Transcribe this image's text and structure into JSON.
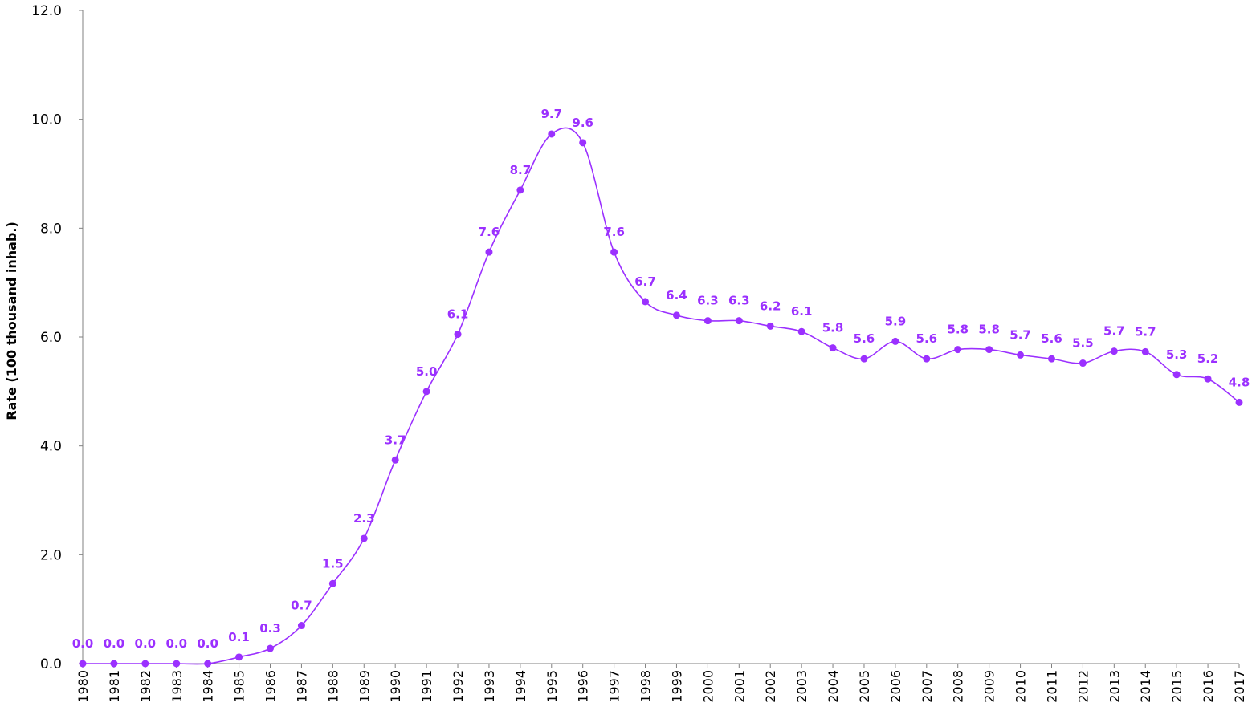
{
  "chart_data": {
    "type": "line",
    "title": "",
    "xlabel": "",
    "ylabel": "Rate (100 thousand inhab.)",
    "ylim": [
      0,
      12
    ],
    "yticks": [
      "0.0",
      "2.0",
      "4.0",
      "6.0",
      "8.0",
      "10.0",
      "12.0"
    ],
    "grid": false,
    "smooth": true,
    "colors": {
      "series": "#9b30ff",
      "axis": "#808080"
    },
    "categories": [
      "1980",
      "1981",
      "1982",
      "1983",
      "1984",
      "1985",
      "1986",
      "1987",
      "1988",
      "1989",
      "1990",
      "1991",
      "1992",
      "1993",
      "1994",
      "1995",
      "1996",
      "1997",
      "1998",
      "1999",
      "2000",
      "2001",
      "2002",
      "2003",
      "2004",
      "2005",
      "2006",
      "2007",
      "2008",
      "2009",
      "2010",
      "2011",
      "2012",
      "2013",
      "2014",
      "2015",
      "2016",
      "2017"
    ],
    "values": [
      0.0,
      0.0,
      0.0,
      0.0,
      0.0,
      0.12,
      0.28,
      0.7,
      1.47,
      2.3,
      3.74,
      5.0,
      6.05,
      7.56,
      8.7,
      9.73,
      9.57,
      7.56,
      6.65,
      6.4,
      6.3,
      6.3,
      6.2,
      6.1,
      5.8,
      5.6,
      5.92,
      5.6,
      5.77,
      5.77,
      5.67,
      5.6,
      5.52,
      5.74,
      5.73,
      5.31,
      5.23,
      4.8
    ],
    "data_labels": [
      "0.0",
      "0.0",
      "0.0",
      "0.0",
      "0.0",
      "0.1",
      "0.3",
      "0.7",
      "1.5",
      "2.3",
      "3.7",
      "5.0",
      "6.1",
      "7.6",
      "8.7",
      "9.7",
      "9.6",
      "7.6",
      "6.7",
      "6.4",
      "6.3",
      "6.3",
      "6.2",
      "6.1",
      "5.8",
      "5.6",
      "5.9",
      "5.6",
      "5.8",
      "5.8",
      "5.7",
      "5.6",
      "5.5",
      "5.7",
      "5.7",
      "5.3",
      "5.2",
      "4.8"
    ]
  }
}
